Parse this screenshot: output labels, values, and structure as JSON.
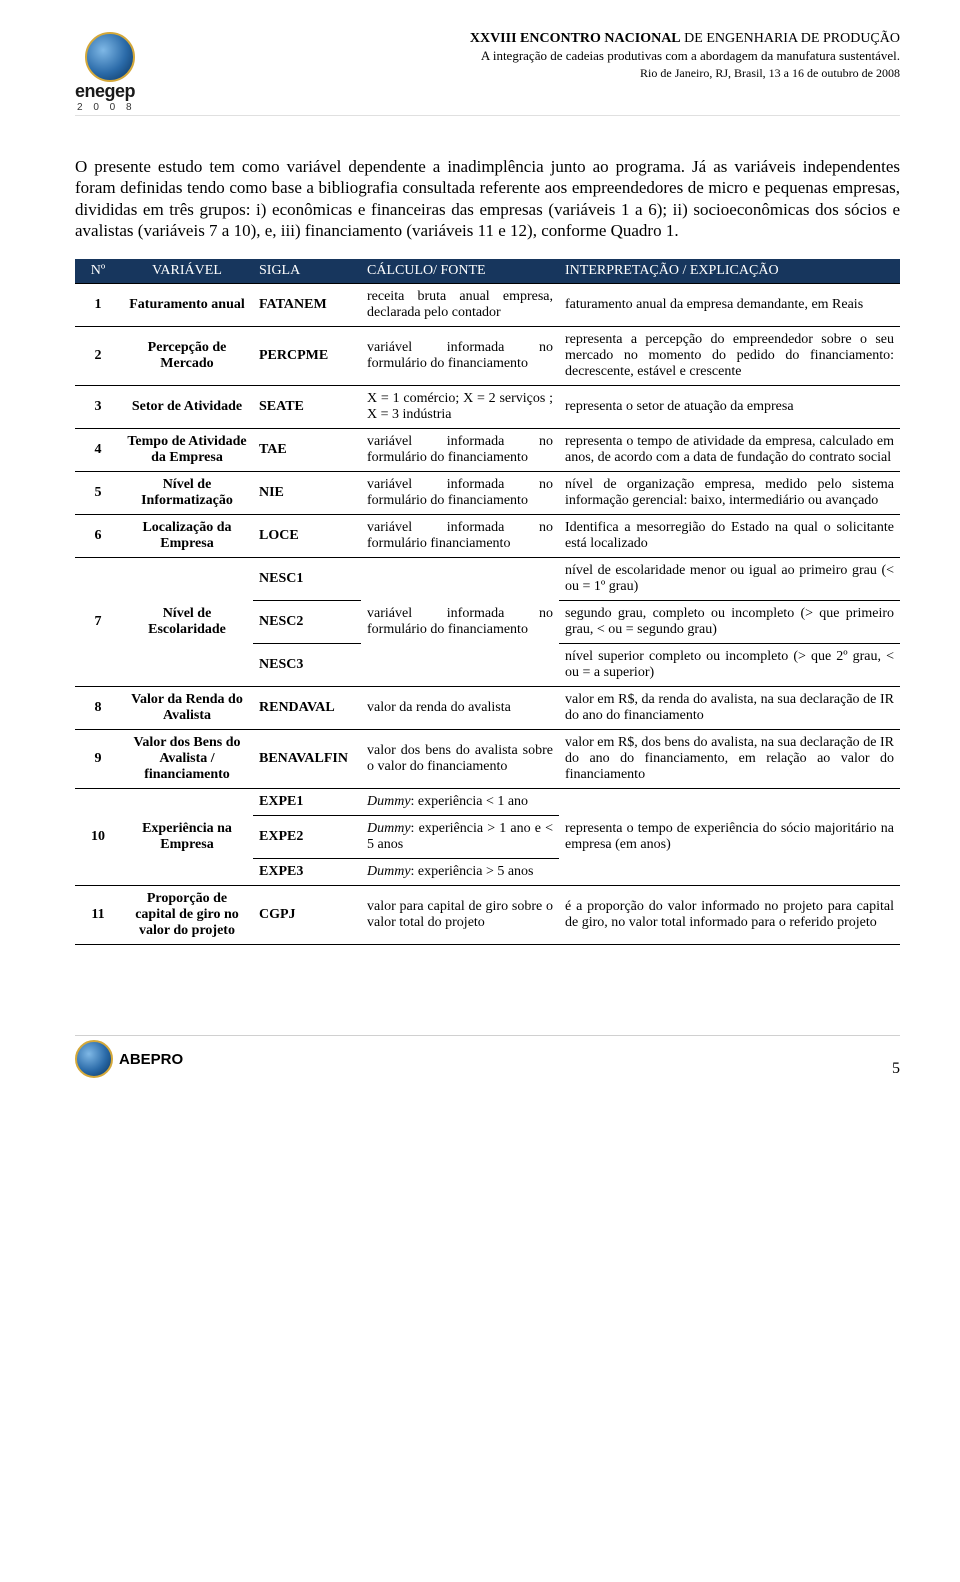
{
  "header": {
    "line1_prefix": "XXVIII ENCONTRO NACIONAL",
    "line1_suffix": " DE ENGENHARIA DE PRODUÇÃO",
    "line2": "A integração de cadeias produtivas com a abordagem da manufatura sustentável.",
    "line3": "Rio de Janeiro, RJ, Brasil, 13 a 16 de outubro de 2008",
    "logo_text": "enegep",
    "logo_year": "2 0 0 8"
  },
  "paragraph": "O presente estudo tem como variável dependente a inadimplência junto ao programa. Já as variáveis independentes foram definidas tendo como base a bibliografia consultada referente aos empreendedores de micro e pequenas empresas, divididas em três grupos: i) econômicas e financeiras das empresas (variáveis 1 a 6); ii) socioeconômicas dos sócios e avalistas (variáveis 7 a 10), e, iii) financiamento (variáveis 11 e 12), conforme Quadro 1.",
  "table": {
    "header_bg": "#17365d",
    "header_fg": "#ffffff",
    "columns": [
      "Nº",
      "VARIÁVEL",
      "SIGLA",
      "CÁLCULO/ FONTE",
      "INTERPRETAÇÃO / EXPLICAÇÃO"
    ],
    "rows": [
      {
        "n": "1",
        "var": "Faturamento anual",
        "sigla": "FATANEM",
        "fonte": "receita bruta anual empresa, declarada pelo contador",
        "interp": "faturamento anual da empresa demandante, em Reais"
      },
      {
        "n": "2",
        "var": "Percepção de Mercado",
        "sigla": "PERCPME",
        "fonte": "variável informada no formulário do financiamento",
        "interp": "representa a percepção do empreendedor sobre o seu mercado no momento do pedido do financiamento: decrescente, estável e crescente"
      },
      {
        "n": "3",
        "var": "Setor de Atividade",
        "sigla": "SEATE",
        "fonte": "X = 1 comércio; X = 2 serviços ; X = 3 indústria",
        "interp": "representa o setor de atuação da empresa"
      },
      {
        "n": "4",
        "var": "Tempo de Atividade da Empresa",
        "sigla": "TAE",
        "fonte": "variável informada no formulário do financiamento",
        "interp": "representa o tempo de atividade da empresa, calculado em anos, de acordo com a data de fundação do contrato social"
      },
      {
        "n": "5",
        "var": "Nível de Informatização",
        "sigla": "NIE",
        "fonte": "variável informada no formulário do financiamento",
        "interp": "nível de organização empresa, medido pelo sistema informação gerencial: baixo, intermediário ou avançado"
      },
      {
        "n": "6",
        "var": "Localização da Empresa",
        "sigla": "LOCE",
        "fonte": "variável informada no formulário financiamento",
        "interp": "Identifica a mesorregião do Estado na qual o solicitante está localizado"
      },
      {
        "n": "7",
        "var": "Nível de Escolaridade",
        "sub": [
          {
            "sigla": "NESC1",
            "fonte": "",
            "interp": "nível de escolaridade menor ou igual ao primeiro grau (< ou = 1º grau)"
          },
          {
            "sigla": "NESC2",
            "fonte": "variável informada no formulário do financiamento",
            "interp": "segundo grau, completo ou incompleto (> que primeiro grau, < ou = segundo grau)"
          },
          {
            "sigla": "NESC3",
            "fonte": "",
            "interp": "nível superior completo ou incompleto (> que 2º grau, < ou = a superior)"
          }
        ]
      },
      {
        "n": "8",
        "var": "Valor da Renda do Avalista",
        "sigla": "RENDAVAL",
        "fonte": "valor da renda do avalista",
        "interp": "valor em R$, da renda do avalista, na sua declaração de IR do ano do financiamento"
      },
      {
        "n": "9",
        "var": "Valor dos Bens do Avalista / financiamento",
        "sigla": "BENAVALFIN",
        "fonte": "valor dos bens do avalista sobre o valor do financiamento",
        "interp": "valor em R$, dos bens do avalista, na sua declaração de IR do ano do financiamento, em relação ao valor do financiamento"
      },
      {
        "n": "10",
        "var": "Experiência na Empresa",
        "sub": [
          {
            "sigla": "EXPE1",
            "fonte": "Dummy: experiência < 1 ano",
            "interp": ""
          },
          {
            "sigla": "EXPE2",
            "fonte": "Dummy: experiência > 1 ano e < 5 anos",
            "interp": "representa o tempo de experiência do sócio majoritário na empresa (em anos)"
          },
          {
            "sigla": "EXPE3",
            "fonte": "Dummy: experiência > 5 anos",
            "interp": ""
          }
        ]
      },
      {
        "n": "11",
        "var": "Proporção de capital de giro no valor do projeto",
        "sigla": "CGPJ",
        "fonte": "valor para capital de giro sobre o valor total do projeto",
        "interp": "é a proporção do valor informado no projeto para capital de giro, no valor total informado para o referido projeto"
      }
    ]
  },
  "footer": {
    "logo_text": "ABEPRO",
    "page_number": "5"
  }
}
